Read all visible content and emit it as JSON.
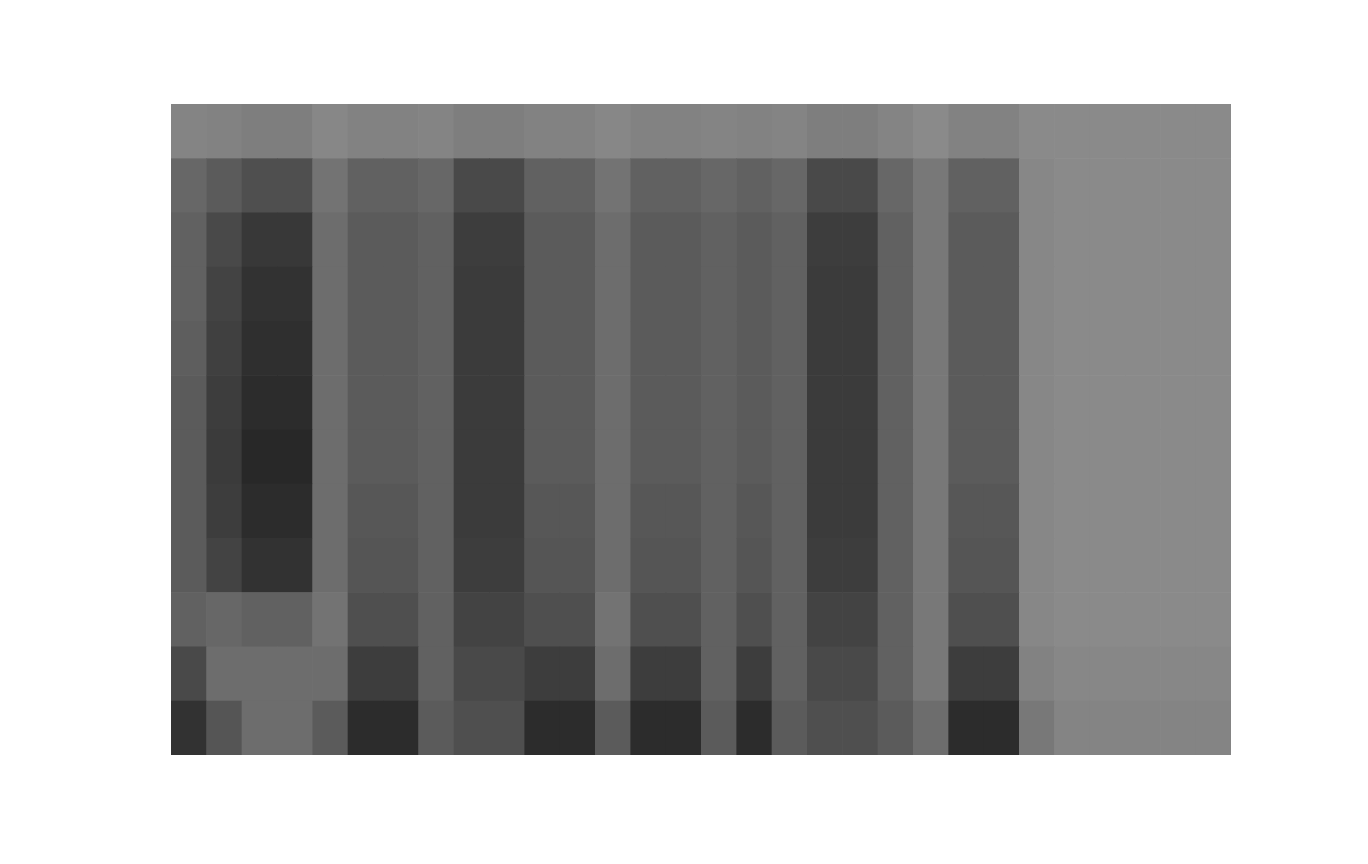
{
  "chart_data": {
    "type": "heatmap",
    "tick_labels": false,
    "zlim": [
      0,
      100
    ],
    "cells": [
      [
        10,
        12,
        15,
        15,
        8,
        12,
        12,
        10,
        15,
        15,
        12,
        12,
        8,
        12,
        12,
        10,
        12,
        10,
        15,
        15,
        10,
        5,
        12,
        12,
        5,
        5,
        5,
        5,
        5,
        5
      ],
      [
        35,
        45,
        55,
        55,
        25,
        40,
        40,
        35,
        60,
        60,
        40,
        40,
        25,
        40,
        40,
        35,
        40,
        35,
        60,
        60,
        35,
        20,
        40,
        40,
        8,
        5,
        5,
        5,
        5,
        5
      ],
      [
        40,
        60,
        75,
        75,
        30,
        45,
        45,
        40,
        70,
        70,
        45,
        45,
        30,
        45,
        45,
        40,
        45,
        40,
        70,
        70,
        40,
        20,
        45,
        45,
        8,
        5,
        5,
        5,
        5,
        5
      ],
      [
        40,
        65,
        80,
        80,
        30,
        45,
        45,
        40,
        72,
        72,
        45,
        45,
        30,
        45,
        45,
        40,
        45,
        40,
        72,
        72,
        40,
        20,
        45,
        45,
        8,
        5,
        5,
        5,
        5,
        5
      ],
      [
        42,
        68,
        82,
        82,
        30,
        45,
        45,
        40,
        72,
        72,
        45,
        45,
        30,
        45,
        45,
        40,
        45,
        40,
        72,
        72,
        40,
        20,
        45,
        45,
        8,
        5,
        5,
        5,
        5,
        5
      ],
      [
        45,
        70,
        85,
        85,
        30,
        45,
        45,
        40,
        72,
        72,
        45,
        45,
        30,
        45,
        45,
        40,
        45,
        40,
        72,
        72,
        40,
        20,
        45,
        45,
        8,
        5,
        5,
        5,
        5,
        5
      ],
      [
        45,
        72,
        88,
        88,
        30,
        45,
        45,
        40,
        72,
        72,
        45,
        45,
        30,
        45,
        45,
        40,
        45,
        40,
        72,
        72,
        40,
        20,
        45,
        45,
        8,
        5,
        5,
        5,
        5,
        5
      ],
      [
        45,
        70,
        85,
        85,
        30,
        48,
        48,
        40,
        72,
        72,
        48,
        48,
        30,
        48,
        48,
        40,
        48,
        40,
        72,
        72,
        40,
        20,
        48,
        48,
        8,
        5,
        5,
        5,
        5,
        5
      ],
      [
        45,
        65,
        80,
        80,
        30,
        50,
        50,
        40,
        70,
        70,
        50,
        50,
        30,
        50,
        50,
        40,
        50,
        40,
        70,
        70,
        40,
        20,
        50,
        50,
        8,
        5,
        5,
        5,
        5,
        5
      ],
      [
        40,
        35,
        40,
        40,
        25,
        55,
        55,
        40,
        65,
        65,
        55,
        55,
        25,
        55,
        55,
        40,
        55,
        40,
        65,
        65,
        40,
        20,
        55,
        55,
        8,
        5,
        5,
        5,
        5,
        5
      ],
      [
        60,
        30,
        30,
        30,
        30,
        70,
        70,
        40,
        60,
        60,
        70,
        70,
        30,
        70,
        70,
        40,
        70,
        40,
        60,
        60,
        40,
        20,
        70,
        70,
        12,
        8,
        8,
        8,
        8,
        8
      ],
      [
        80,
        50,
        30,
        30,
        45,
        85,
        85,
        45,
        55,
        55,
        85,
        85,
        45,
        85,
        85,
        45,
        85,
        45,
        55,
        55,
        45,
        30,
        85,
        85,
        20,
        10,
        10,
        10,
        10,
        10
      ]
    ]
  }
}
